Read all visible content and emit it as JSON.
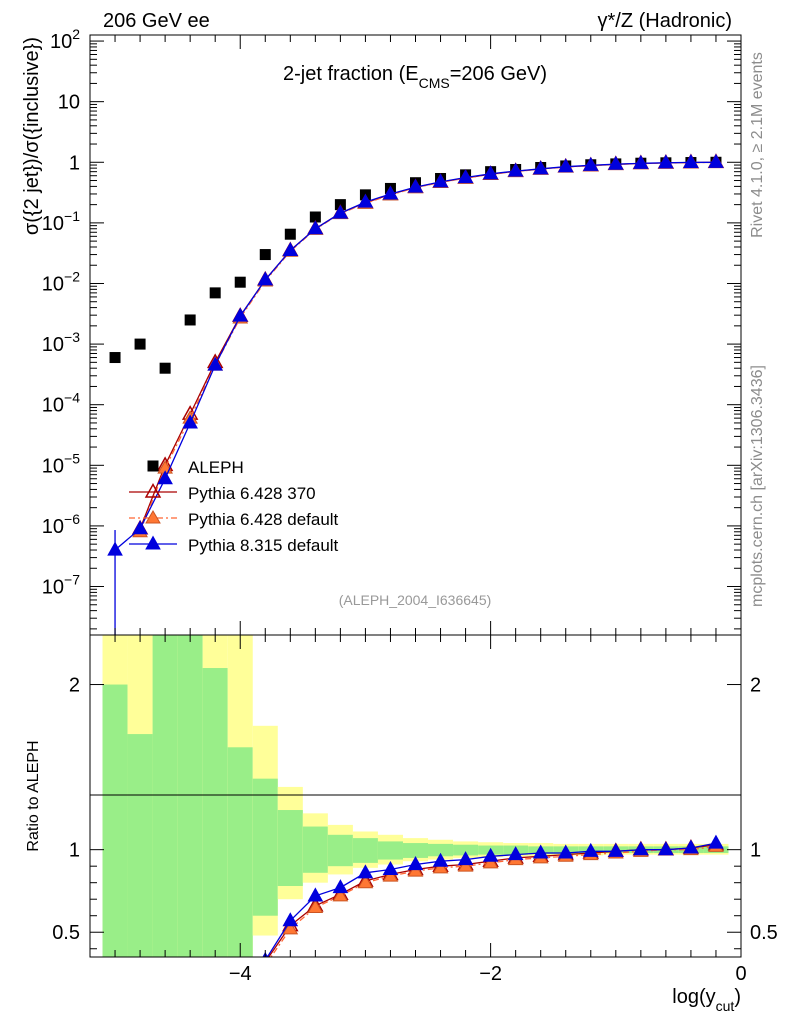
{
  "header": {
    "left": "206 GeV ee",
    "right": "γ*/Z (Hadronic)"
  },
  "side_labels": {
    "rivet": "Rivet 4.1.0, ≥ 2.1M events",
    "mcplots": "mcplots.cern.ch [arXiv:1306.3436]"
  },
  "colors": {
    "aleph": "#000000",
    "py6_370": "#aa0000",
    "py6_default": "#ff6633",
    "py8": "#0000dd",
    "band_inner": "#99ee88",
    "band_outer": "#ffff99"
  },
  "chart_data": {
    "type": "scatter",
    "title": "2-jet fraction (E",
    "title_sub": "CMS",
    "title_tail": "=206 GeV)",
    "watermark": "(ALEPH_2004_I636645)",
    "ylabel_main": "σ({2 jet})/σ({inclusive})",
    "ylabel_ratio": "Ratio to ALEPH",
    "xlabel": "log(y",
    "xlabel_sub": "cut",
    "xlabel_tail": ")",
    "xlim": [
      -5.2,
      0
    ],
    "ylim_main_log10": [
      -7.8,
      2.1
    ],
    "ylim_ratio": [
      0.35,
      2.3
    ],
    "x_ticks": [
      {
        "value": -4,
        "label": "−4"
      },
      {
        "value": -2,
        "label": "−2"
      },
      {
        "value": 0,
        "label": "0"
      }
    ],
    "y_ticks_main": [
      {
        "exp": 2,
        "label": "10",
        "sup": "2"
      },
      {
        "exp": 1,
        "label": "10",
        "sup": ""
      },
      {
        "exp": 0,
        "label": "1",
        "sup": ""
      },
      {
        "exp": -1,
        "label": "10",
        "sup": "−1"
      },
      {
        "exp": -2,
        "label": "10",
        "sup": "−2"
      },
      {
        "exp": -3,
        "label": "10",
        "sup": "−3"
      },
      {
        "exp": -4,
        "label": "10",
        "sup": "−4"
      },
      {
        "exp": -5,
        "label": "10",
        "sup": "−5"
      },
      {
        "exp": -6,
        "label": "10",
        "sup": "−6"
      },
      {
        "exp": -7,
        "label": "10",
        "sup": "−7"
      }
    ],
    "y_ticks_ratio": [
      {
        "value": 0.5,
        "label": "0.5"
      },
      {
        "value": 1,
        "label": "1"
      },
      {
        "value": 2,
        "label": "2"
      }
    ],
    "legend": [
      {
        "key": "aleph",
        "label": "ALEPH"
      },
      {
        "key": "py6_370",
        "label": "Pythia 6.428 370"
      },
      {
        "key": "py6_default",
        "label": "Pythia 6.428 default"
      },
      {
        "key": "py8",
        "label": "Pythia 8.315 default"
      }
    ],
    "x": [
      -5.0,
      -4.8,
      -4.6,
      -4.4,
      -4.2,
      -4.0,
      -3.8,
      -3.6,
      -3.4,
      -3.2,
      -3.0,
      -2.8,
      -2.6,
      -2.4,
      -2.2,
      -2.0,
      -1.8,
      -1.6,
      -1.4,
      -1.2,
      -1.0,
      -0.8,
      -0.6,
      -0.4,
      -0.2
    ],
    "series": [
      {
        "name": "ALEPH",
        "values": [
          0.0006,
          0.001,
          0.0004,
          0.0025,
          0.007,
          0.0105,
          0.03,
          0.065,
          0.125,
          0.2,
          0.29,
          0.37,
          0.46,
          0.54,
          0.62,
          0.7,
          0.76,
          0.82,
          0.87,
          0.91,
          0.94,
          0.965,
          0.98,
          0.99,
          1.0
        ]
      },
      {
        "name": "Pythia 6.428 370",
        "values": [
          null,
          9e-07,
          1e-05,
          7e-05,
          0.0005,
          0.0029,
          0.0115,
          0.035,
          0.08,
          0.145,
          0.215,
          0.295,
          0.385,
          0.47,
          0.55,
          0.635,
          0.71,
          0.775,
          0.84,
          0.88,
          0.925,
          0.955,
          0.975,
          0.99,
          1.0
        ],
        "ratio": [
          null,
          null,
          null,
          null,
          null,
          null,
          0.32,
          0.54,
          0.66,
          0.73,
          0.81,
          0.85,
          0.88,
          0.9,
          0.91,
          0.93,
          0.95,
          0.96,
          0.97,
          0.98,
          0.99,
          1.0,
          1.0,
          1.01,
          1.03
        ]
      },
      {
        "name": "Pythia 6.428 default",
        "values": [
          null,
          8e-07,
          9e-06,
          6e-05,
          0.00045,
          0.0027,
          0.011,
          0.034,
          0.078,
          0.142,
          0.21,
          0.29,
          0.38,
          0.465,
          0.545,
          0.63,
          0.705,
          0.77,
          0.835,
          0.875,
          0.92,
          0.95,
          0.97,
          0.985,
          1.0
        ],
        "ratio": [
          null,
          null,
          null,
          null,
          null,
          null,
          0.3,
          0.52,
          0.65,
          0.72,
          0.8,
          0.84,
          0.87,
          0.89,
          0.9,
          0.92,
          0.94,
          0.95,
          0.96,
          0.97,
          0.98,
          0.99,
          1.0,
          1.0,
          1.02
        ]
      },
      {
        "name": "Pythia 8.315 default",
        "values": [
          4e-07,
          9e-07,
          6e-06,
          5e-05,
          0.00045,
          0.0029,
          0.0115,
          0.035,
          0.08,
          0.145,
          0.22,
          0.3,
          0.39,
          0.475,
          0.56,
          0.645,
          0.715,
          0.78,
          0.845,
          0.89,
          0.93,
          0.96,
          0.98,
          0.995,
          1.0
        ],
        "ratio": [
          null,
          null,
          null,
          null,
          null,
          null,
          0.33,
          0.57,
          0.72,
          0.77,
          0.86,
          0.88,
          0.91,
          0.93,
          0.94,
          0.96,
          0.97,
          0.98,
          0.98,
          0.99,
          0.99,
          1.0,
          1.0,
          1.01,
          1.04
        ]
      }
    ],
    "band": {
      "x_edges": [
        -5.1,
        -4.9,
        -4.7,
        -4.5,
        -4.3,
        -4.1,
        -3.9,
        -3.7,
        -3.5,
        -3.3,
        -3.1,
        -2.9,
        -2.7,
        -2.5,
        -2.3,
        -2.1,
        -1.9,
        -1.7,
        -1.5,
        -1.3,
        -1.1,
        -0.9,
        -0.7,
        -0.5,
        -0.3,
        -0.1
      ],
      "outer_lo": [
        0.35,
        0.35,
        0.35,
        0.35,
        0.35,
        0.35,
        0.48,
        0.7,
        0.8,
        0.85,
        0.89,
        0.91,
        0.93,
        0.94,
        0.95,
        0.955,
        0.96,
        0.96,
        0.965,
        0.965,
        0.97,
        0.97,
        0.97,
        0.97,
        0.97
      ],
      "outer_hi": [
        2.3,
        2.3,
        2.3,
        2.3,
        2.3,
        2.3,
        1.75,
        1.38,
        1.22,
        1.15,
        1.11,
        1.09,
        1.07,
        1.06,
        1.05,
        1.045,
        1.04,
        1.04,
        1.035,
        1.035,
        1.035,
        1.035,
        1.035,
        1.035,
        1.035
      ],
      "inner_lo": [
        0.35,
        0.35,
        0.35,
        0.35,
        0.35,
        0.35,
        0.6,
        0.78,
        0.86,
        0.9,
        0.92,
        0.94,
        0.95,
        0.96,
        0.965,
        0.97,
        0.97,
        0.975,
        0.975,
        0.98,
        0.98,
        0.98,
        0.98,
        0.98,
        0.98
      ],
      "inner_hi": [
        2.0,
        1.7,
        2.3,
        2.3,
        2.1,
        1.62,
        1.43,
        1.24,
        1.14,
        1.09,
        1.07,
        1.05,
        1.04,
        1.035,
        1.03,
        1.025,
        1.025,
        1.02,
        1.02,
        1.02,
        1.02,
        1.02,
        1.02,
        1.02,
        1.02
      ]
    }
  }
}
